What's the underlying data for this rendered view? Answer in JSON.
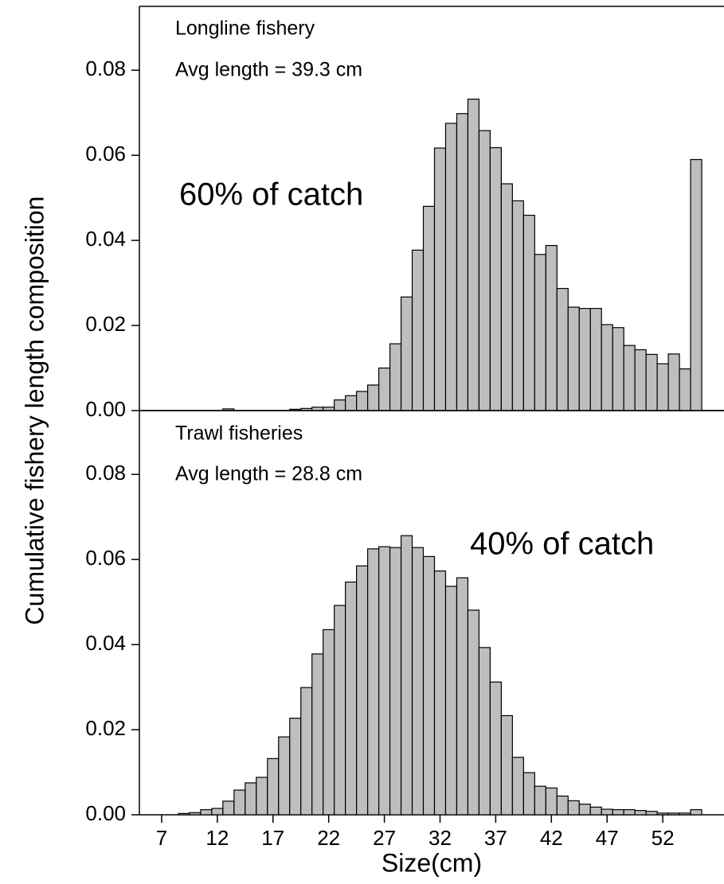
{
  "chart_data": [
    {
      "type": "histogram",
      "annotations": [
        "Longline fishery",
        "Avg length = 39.3 cm",
        "60% of catch"
      ],
      "ylabel": "Cumulative fishery length composition",
      "bins": [
        4.5,
        5.5,
        6.5,
        7.5,
        8.5,
        9.5,
        10.5,
        11.5,
        12.5,
        13.5,
        14.5,
        15.5,
        16.5,
        17.5,
        18.5,
        19.5,
        20.5,
        21.5,
        22.5,
        23.5,
        24.5,
        25.5,
        26.5,
        27.5,
        28.5,
        29.5,
        30.5,
        31.5,
        32.5,
        33.5,
        34.5,
        35.5,
        36.5,
        37.5,
        38.5,
        39.5,
        40.5,
        41.5,
        42.5,
        43.5,
        44.5,
        45.5,
        46.5,
        47.5,
        48.5,
        49.5,
        50.5,
        51.5,
        52.5,
        53.5,
        54.5,
        55.5
      ],
      "values": [
        0,
        0,
        0,
        0,
        0,
        0,
        0,
        0,
        0.0004,
        0,
        0,
        0,
        0,
        0,
        0.0003,
        0.0005,
        0.0008,
        0.0008,
        0.0025,
        0.0035,
        0.0045,
        0.006,
        0.01,
        0.0157,
        0.0267,
        0.0377,
        0.048,
        0.0617,
        0.0675,
        0.0698,
        0.0732,
        0.0658,
        0.0618,
        0.0533,
        0.0493,
        0.0459,
        0.0367,
        0.0388,
        0.0287,
        0.0243,
        0.024,
        0.024,
        0.0202,
        0.0195,
        0.0153,
        0.0143,
        0.0132,
        0.011,
        0.0133,
        0.0098,
        0.059
      ],
      "color": "#bebebe",
      "xlim": [
        5,
        57.5
      ],
      "ylim": [
        0,
        0.095
      ],
      "yticks": [
        {
          "value": 0,
          "label": "0.00"
        },
        {
          "value": 0.02,
          "label": "0.02"
        },
        {
          "value": 0.04,
          "label": "0.04"
        },
        {
          "value": 0.06,
          "label": "0.06"
        },
        {
          "value": 0.08,
          "label": "0.08"
        }
      ]
    },
    {
      "type": "histogram",
      "annotations": [
        "Trawl fisheries",
        "Avg length = 28.8 cm",
        "40% of catch"
      ],
      "xlabel": "Size(cm)",
      "bins": [
        4.5,
        5.5,
        6.5,
        7.5,
        8.5,
        9.5,
        10.5,
        11.5,
        12.5,
        13.5,
        14.5,
        15.5,
        16.5,
        17.5,
        18.5,
        19.5,
        20.5,
        21.5,
        22.5,
        23.5,
        24.5,
        25.5,
        26.5,
        27.5,
        28.5,
        29.5,
        30.5,
        31.5,
        32.5,
        33.5,
        34.5,
        35.5,
        36.5,
        37.5,
        38.5,
        39.5,
        40.5,
        41.5,
        42.5,
        43.5,
        44.5,
        45.5,
        46.5,
        47.5,
        48.5,
        49.5,
        50.5,
        51.5,
        52.5,
        53.5,
        54.5,
        55.5
      ],
      "values": [
        0,
        0,
        0,
        0,
        0.0003,
        0.0005,
        0.0012,
        0.0015,
        0.0032,
        0.0058,
        0.0075,
        0.0088,
        0.0132,
        0.0183,
        0.0227,
        0.0299,
        0.0378,
        0.0435,
        0.0492,
        0.0547,
        0.0585,
        0.0625,
        0.063,
        0.0628,
        0.0656,
        0.0628,
        0.0607,
        0.0573,
        0.0537,
        0.0557,
        0.0481,
        0.0393,
        0.0312,
        0.0233,
        0.0135,
        0.0099,
        0.0067,
        0.0063,
        0.0044,
        0.0033,
        0.0025,
        0.0018,
        0.0013,
        0.0012,
        0.0012,
        0.001,
        0.0008,
        0.0004,
        0.0004,
        0.0004,
        0.0012
      ],
      "color": "#bebebe",
      "xlim": [
        5,
        57.5
      ],
      "xticks": [
        7,
        12,
        17,
        22,
        27,
        32,
        37,
        42,
        47,
        52
      ],
      "ylim": [
        0,
        0.095
      ],
      "yticks": [
        {
          "value": 0,
          "label": "0.00"
        },
        {
          "value": 0.02,
          "label": "0.02"
        },
        {
          "value": 0.04,
          "label": "0.04"
        },
        {
          "value": 0.06,
          "label": "0.06"
        },
        {
          "value": 0.08,
          "label": "0.08"
        }
      ]
    }
  ]
}
